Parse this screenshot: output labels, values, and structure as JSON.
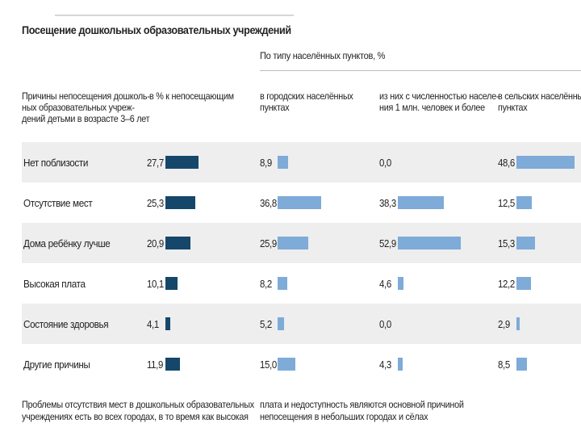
{
  "colors": {
    "dark_bar": "#15476b",
    "light_bar": "#7eabd8",
    "row_shade": "#eeeeee"
  },
  "header": {
    "title": "Посещение дошкольных образовательных учреждений",
    "group": "По типу населённых пунктов, %"
  },
  "columns": {
    "reason": "Причины непосещения дошколь-\nных образовательных учреж-\nдений детьми в возрасте 3–6 лет",
    "total": "в % к непосещающим",
    "urban": "в городских населённых\nпунктах",
    "million": "из них с численностью населе-\nния 1 млн. человек и более",
    "rural": "в сельских населённых\nпунктах"
  },
  "footnote": {
    "left": "Проблемы отсутствия мест в дошкольных образовательных\nучреждениях есть во всех городах, в то время как высокая",
    "right": "плата и недоступность являются основной причиной\nнепосещения в небольших городах и сёлах"
  },
  "chart_data": {
    "type": "bar",
    "title": "Посещение дошкольных образовательных учреждений",
    "categories": [
      "Нет поблизости",
      "Отсутствие мест",
      "Дома ребёнку лучше",
      "Высокая плата",
      "Состояние здоровья",
      "Другие причины"
    ],
    "series": [
      {
        "name": "в % к непосещающим",
        "values": [
          "27,7",
          "25,3",
          "20,9",
          "10,1",
          "4,1",
          "11,9"
        ]
      },
      {
        "name": "в городских населённых пунктах",
        "values": [
          "8,9",
          "36,8",
          "25,9",
          "8,2",
          "5,2",
          "15,0"
        ]
      },
      {
        "name": "из них с численностью населения 1 млн. человек и более",
        "values": [
          "0,0",
          "38,3",
          "52,9",
          "4,6",
          "0,0",
          "4,3"
        ]
      },
      {
        "name": "в сельских населённых пунктах",
        "values": [
          "48,6",
          "12,5",
          "15,3",
          "12,2",
          "2,9",
          "8,5"
        ]
      }
    ]
  }
}
